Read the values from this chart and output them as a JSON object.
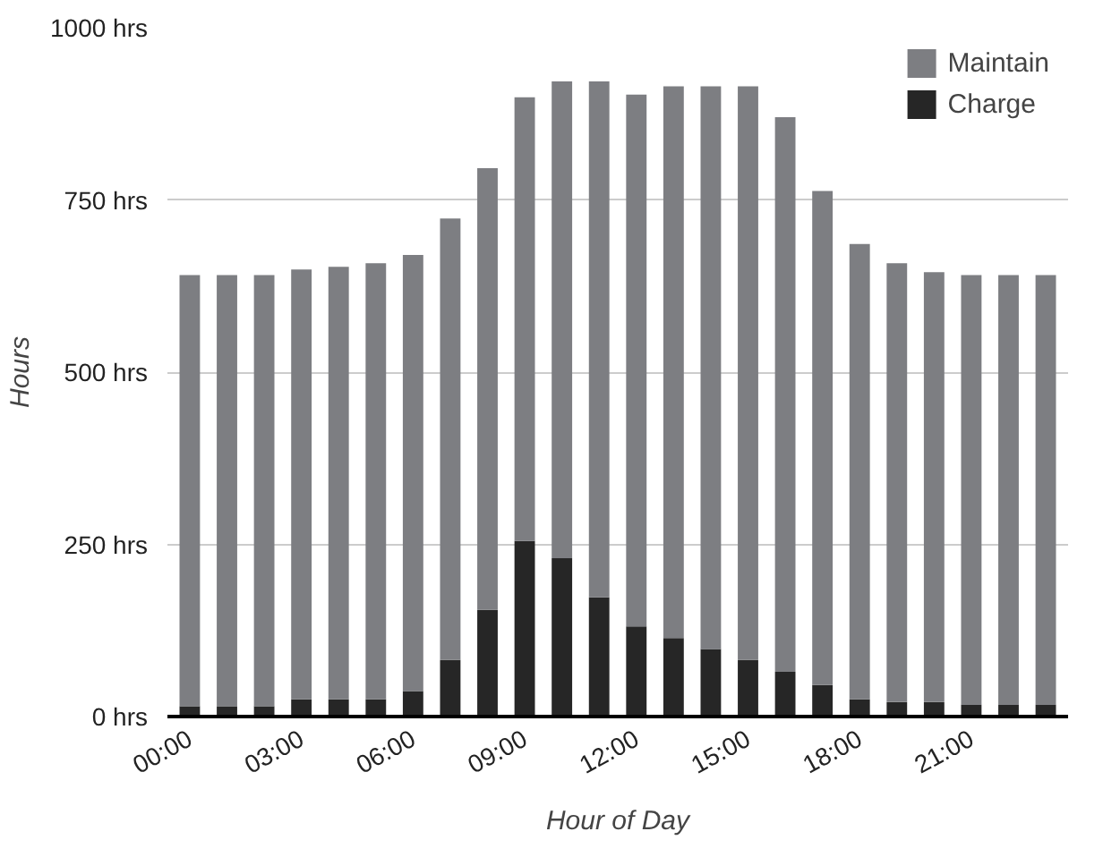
{
  "chart_data": {
    "type": "bar",
    "stacked": true,
    "xlabel": "Hour of Day",
    "ylabel": "Hours",
    "categories": [
      "00:00",
      null,
      null,
      "03:00",
      null,
      null,
      "06:00",
      null,
      null,
      "09:00",
      null,
      null,
      "12:00",
      null,
      null,
      "15:00",
      null,
      null,
      "18:00",
      null,
      null,
      "21:00",
      null,
      null
    ],
    "series": [
      {
        "name": "Charge",
        "color": "#262626",
        "values": [
          15,
          15,
          15,
          25,
          25,
          25,
          37,
          82,
          155,
          255,
          230,
          173,
          131,
          114,
          98,
          82,
          65,
          46,
          25,
          21,
          21,
          17,
          17,
          17
        ]
      },
      {
        "name": "Maintain",
        "color": "#7d7e82",
        "values": [
          626,
          626,
          626,
          624,
          628,
          633,
          633,
          641,
          641,
          644,
          692,
          749,
          772,
          801,
          817,
          833,
          805,
          717,
          661,
          637,
          624,
          624,
          624,
          624
        ]
      }
    ],
    "ylim": [
      0,
      1000
    ],
    "yticks": [
      {
        "value": 0,
        "label": "0 hrs"
      },
      {
        "value": 250,
        "label": "250 hrs"
      },
      {
        "value": 500,
        "label": "500 hrs"
      },
      {
        "value": 750,
        "label": "750 hrs"
      },
      {
        "value": 1000,
        "label": "1000 hrs"
      }
    ],
    "grid": "y",
    "legend": "top right"
  }
}
